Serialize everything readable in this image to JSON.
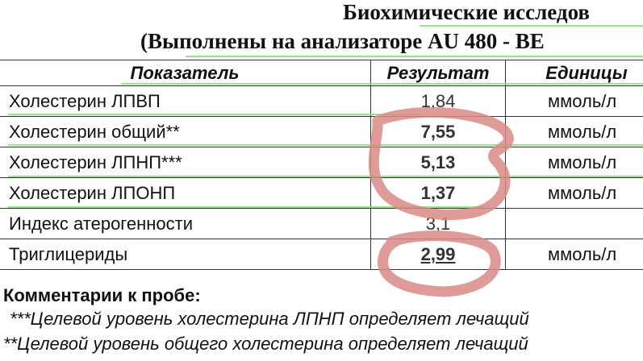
{
  "title": "Биохимические исследов",
  "subtitle": "(Выполнены на анализаторе  AU 480 - BE",
  "table": {
    "headers": [
      "Показатель",
      "Результат",
      "Единицы"
    ],
    "rows": [
      {
        "name": "Холестерин ЛПВП",
        "value": "1,84",
        "unit": "ммоль/л"
      },
      {
        "name": "Холестерин общий**",
        "value": "7,55",
        "unit": "ммоль/л"
      },
      {
        "name": "Холестерин ЛПНП***",
        "value": "5,13",
        "unit": "ммоль/л"
      },
      {
        "name": "Холестерин ЛПОНП",
        "value": "1,37",
        "unit": "ммоль/л"
      },
      {
        "name": "Индекс атерогенности",
        "value": "3,1",
        "unit": ""
      },
      {
        "name": "Триглицериды",
        "value": "2,99",
        "unit": "ммоль/л"
      }
    ]
  },
  "comments": {
    "heading": "Комментарии к пробе:",
    "lines": [
      "***Целевой уровень холестерина ЛПНП определяет лечащий",
      "**Целевой уровень общего холестерина определяет лечащий"
    ]
  },
  "colors": {
    "annotation": "#d98a86",
    "spellcheck": "#7fe06a"
  }
}
